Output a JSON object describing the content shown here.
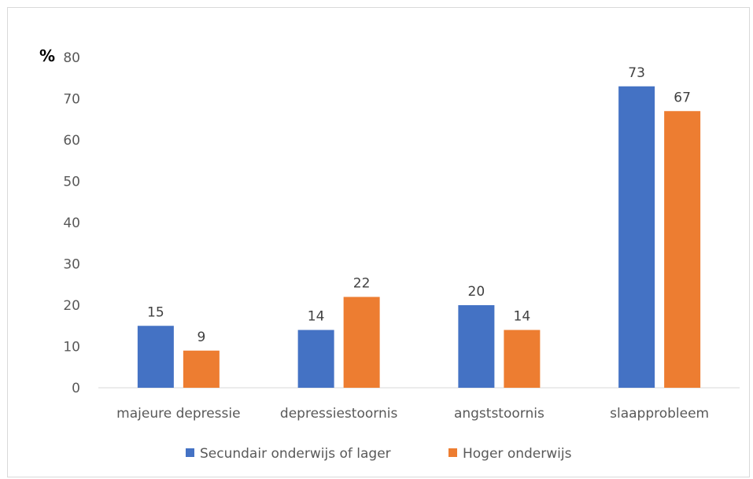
{
  "chart_data": {
    "type": "bar",
    "unit_label": "%",
    "categories": [
      "majeure depressie",
      "depressiestoornis",
      "angststoornis",
      "slaapprobleem"
    ],
    "series": [
      {
        "name": "Secundair onderwijs of lager",
        "color": "#4472C4",
        "values": [
          15,
          14,
          20,
          73
        ]
      },
      {
        "name": "Hoger onderwijs",
        "color": "#ED7D31",
        "values": [
          9,
          22,
          14,
          67
        ]
      }
    ],
    "ylim": [
      0,
      80
    ],
    "yticks": [
      0,
      10,
      20,
      30,
      40,
      50,
      60,
      70,
      80
    ],
    "grid": false,
    "legend": "bottom"
  }
}
